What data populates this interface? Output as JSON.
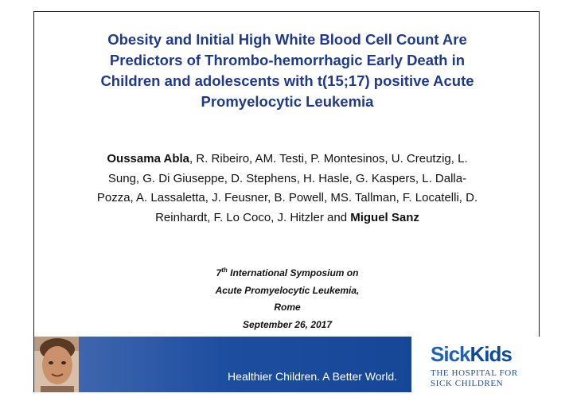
{
  "title": {
    "lines": [
      "Obesity and Initial High White Blood Cell Count Are",
      "Predictors of Thrombo-hemorrhagic Early Death in",
      "Children and adolescents with t(15;17) positive Acute",
      "Promyelocytic Leukemia"
    ]
  },
  "authors": {
    "first_author": "Oussama Abla",
    "line1_rest": ", R. Ribeiro, AM. Testi, P. Montesinos, U. Creutzig, L.",
    "line2": "Sung, G. Di Giuseppe, D. Stephens, H. Hasle, G. Kaspers, L. Dalla-",
    "line3": "Pozza, A. Lassaletta, J. Feusner, B. Powell, MS. Tallman, F. Locatelli, D.",
    "line4_rest": "Reinhardt, F. Lo Coco, J. Hitzler and ",
    "last_author": "Miguel Sanz"
  },
  "symposium": {
    "ordinal_number": "7",
    "ordinal_suffix": "th",
    "line1_rest": " International Symposium on",
    "line2": "Acute Promyelocytic Leukemia,",
    "line3": "Rome",
    "line4": "September 26, 2017"
  },
  "banner": {
    "tagline": "Healthier Children. A Better World.",
    "logo_sick": "Sick",
    "logo_kids": "Kids",
    "logo_line1": "THE HOSPITAL FOR",
    "logo_line2": "SICK CHILDREN"
  }
}
